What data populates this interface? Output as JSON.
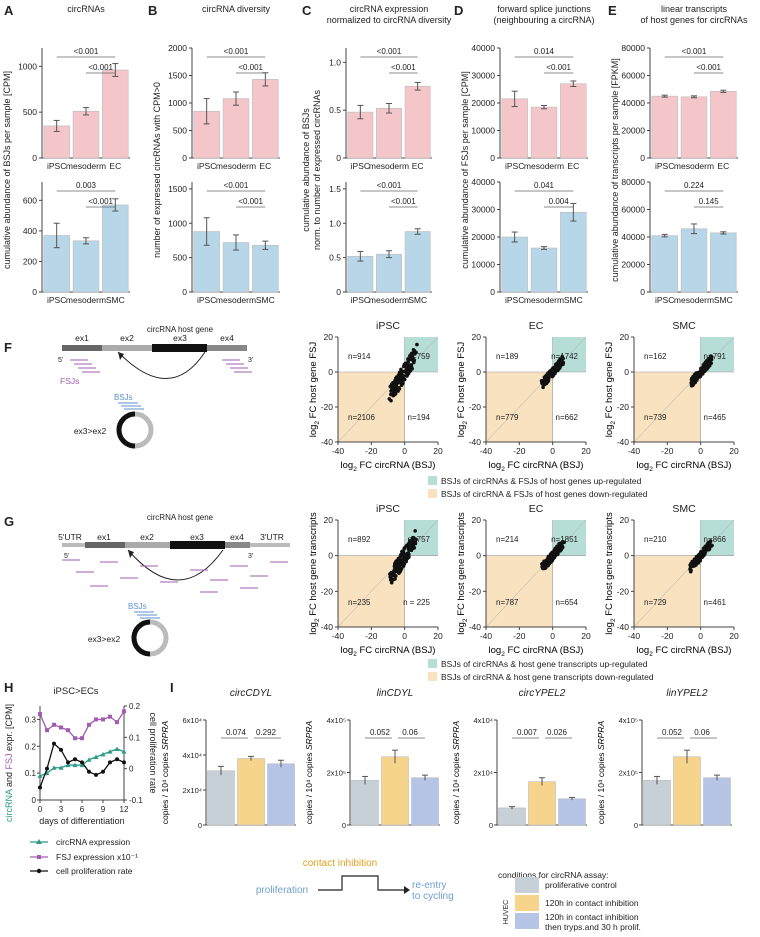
{
  "colors": {
    "pink": "#f4c5c9",
    "blue": "#b7d6e8",
    "teal": "#b6ddd6",
    "tan": "#f8e2c0",
    "purple": "#a35bb3",
    "green": "#2b9a87",
    "gray": "#c6d0d6",
    "gold": "#f6d48c",
    "lavender": "#b6c5e6",
    "bsjblue": "#5b8fd0",
    "inhibit": "#e0a020",
    "prolif": "#6f9fcf"
  },
  "panelA": {
    "letter": "A",
    "title": [
      "circRNAs"
    ],
    "ylabel": [
      "cumulative abundance of BSJs per sample [CPM]"
    ],
    "top": {
      "ticks": [
        "0",
        "500",
        "1000"
      ],
      "tv": [
        0,
        500,
        1000
      ],
      "ymax": 1200,
      "cats": [
        "iPSC",
        "mesoderm",
        "EC"
      ],
      "values": [
        350,
        510,
        960
      ],
      "errors": [
        60,
        40,
        70
      ],
      "p": [
        "<0.001",
        "<0.001"
      ]
    },
    "bottom": {
      "ticks": [
        "0",
        "200",
        "400",
        "600"
      ],
      "tv": [
        0,
        200,
        400,
        600
      ],
      "ymax": 720,
      "cats": [
        "iPSC",
        "mesoderm",
        "SMC"
      ],
      "values": [
        370,
        335,
        570
      ],
      "errors": [
        80,
        20,
        40
      ],
      "p": [
        "0.003",
        "<0.001"
      ]
    }
  },
  "panelB": {
    "letter": "B",
    "title": [
      "circRNA diversity"
    ],
    "ylabel": [
      "number of expressed circRNAs with CPM>0"
    ],
    "top": {
      "ticks": [
        "0",
        "500",
        "1000",
        "1500",
        "2000"
      ],
      "tv": [
        0,
        500,
        1000,
        1500,
        2000
      ],
      "ymax": 2000,
      "cats": [
        "iPSC",
        "mesoderm",
        "EC"
      ],
      "values": [
        850,
        1080,
        1430
      ],
      "errors": [
        230,
        120,
        120
      ],
      "p": [
        "<0.001",
        "<0.001"
      ]
    },
    "bottom": {
      "ticks": [
        "0",
        "500",
        "1000",
        "1500"
      ],
      "tv": [
        0,
        500,
        1000,
        1500
      ],
      "ymax": 1600,
      "cats": [
        "iPSC",
        "mesoderm",
        "SMC"
      ],
      "values": [
        880,
        720,
        680
      ],
      "errors": [
        200,
        110,
        60
      ],
      "p": [
        "<0.001",
        "<0.001"
      ]
    }
  },
  "panelC": {
    "letter": "C",
    "title": [
      "circRNA expression",
      "normalized to circRNA diversity"
    ],
    "ylabel": [
      "cumulative abundance of BSJs",
      "norm. to number of expressed circRNAs"
    ],
    "top": {
      "ticks": [
        "0",
        "0.5",
        "1.0"
      ],
      "tv": [
        0,
        0.5,
        1.0
      ],
      "ymax": 1.15,
      "cats": [
        "iPSC",
        "mesoderm",
        "EC"
      ],
      "values": [
        0.48,
        0.52,
        0.75
      ],
      "errors": [
        0.07,
        0.05,
        0.04
      ],
      "p": [
        "<0.001",
        "<0.001"
      ]
    },
    "bottom": {
      "ticks": [
        "0",
        "0.5",
        "1.0",
        "1.5"
      ],
      "tv": [
        0,
        0.5,
        1.0,
        1.5
      ],
      "ymax": 1.6,
      "cats": [
        "iPSC",
        "mesoderm",
        "SMC"
      ],
      "values": [
        0.52,
        0.55,
        0.88
      ],
      "errors": [
        0.07,
        0.05,
        0.04
      ],
      "p": [
        "<0.001",
        "<0.001"
      ]
    }
  },
  "panelD": {
    "letter": "D",
    "title": [
      "forward splice junctions",
      "(neighbouring a circRNA)"
    ],
    "ylabel": [
      "cumulative abundance of FSJs per sample [CPM]"
    ],
    "top": {
      "ticks": [
        "0",
        "10000",
        "20000",
        "30000",
        "40000"
      ],
      "tv": [
        0,
        10000,
        20000,
        30000,
        40000
      ],
      "ymax": 40000,
      "cats": [
        "iPSC",
        "mesoderm",
        "EC"
      ],
      "values": [
        21500,
        18500,
        27000
      ],
      "errors": [
        2800,
        600,
        1000
      ],
      "p": [
        "0.014",
        "<0.001"
      ]
    },
    "bottom": {
      "ticks": [
        "0",
        "10000",
        "20000",
        "30000",
        "40000"
      ],
      "tv": [
        0,
        10000,
        20000,
        30000,
        40000
      ],
      "ymax": 40000,
      "cats": [
        "iPSC",
        "mesoderm",
        "SMC"
      ],
      "values": [
        20000,
        16000,
        29000
      ],
      "errors": [
        1800,
        500,
        3200
      ],
      "p": [
        "0.041",
        "0.004"
      ]
    }
  },
  "panelE": {
    "letter": "E",
    "title": [
      "linear transcripts",
      "of host genes for circRNAs"
    ],
    "ylabel": [
      "cumulative abundance of transcripts per sample [FPKM]"
    ],
    "top": {
      "ticks": [
        "0",
        "20000",
        "40000",
        "60000",
        "80000"
      ],
      "tv": [
        0,
        20000,
        40000,
        60000,
        80000
      ],
      "ymax": 80000,
      "cats": [
        "iPSC",
        "mesoderm",
        "EC"
      ],
      "values": [
        45000,
        44500,
        48500
      ],
      "errors": [
        700,
        700,
        800
      ],
      "p": [
        "<0.001",
        "<0.001"
      ]
    },
    "bottom": {
      "ticks": [
        "0",
        "20000",
        "40000",
        "60000",
        "80000"
      ],
      "tv": [
        0,
        20000,
        40000,
        60000,
        80000
      ],
      "ymax": 80000,
      "cats": [
        "iPSC",
        "mesoderm",
        "SMC"
      ],
      "values": [
        41000,
        46000,
        43000
      ],
      "errors": [
        900,
        3500,
        800
      ],
      "p": [
        "0.224",
        "0.145"
      ]
    }
  },
  "panelF": {
    "letter": "F",
    "host_title": "circRNA host gene",
    "exons": [
      "ex1",
      "ex2",
      "ex3",
      "ex4"
    ],
    "five": "5'",
    "three": "3'",
    "fsj": "FSJs",
    "bsj": "BSJs",
    "junction": "ex3>ex2",
    "ylabel": "FC host gene FSJ",
    "xlabel": "FC circRNA (BSJ)",
    "log": "log",
    "sub": "2",
    "axis": {
      "x": [
        -40,
        20
      ],
      "y": [
        -40,
        20
      ],
      "ticks": [
        "-40",
        "-20",
        "0",
        "20"
      ],
      "tv": [
        -40,
        -20,
        0,
        20
      ]
    },
    "plots": [
      {
        "title": "iPSC",
        "counts": [
          "n=914",
          "n=759",
          "n=2106",
          "n=194"
        ]
      },
      {
        "title": "EC",
        "counts": [
          "n=189",
          "n=1742",
          "n=779",
          "n=662"
        ]
      },
      {
        "title": "SMC",
        "counts": [
          "n=162",
          "n=791",
          "n=739",
          "n=465"
        ]
      }
    ],
    "legend": [
      "BSJs of circRNAs & FSJs of host genes up-regulated",
      "BSJs of circRNA & FSJs of host genes down-regulated"
    ]
  },
  "panelG": {
    "letter": "G",
    "host_title": "circRNA host gene",
    "utr5": "5'UTR",
    "utr3": "3'UTR",
    "exons": [
      "ex1",
      "ex2",
      "ex3",
      "ex4"
    ],
    "five": "5'",
    "three": "3'",
    "bsj": "BSJs",
    "junction": "ex3>ex2",
    "ylabel": "FC host gene transcripts",
    "xlabel": "FC circRNA (BSJ)",
    "log": "log",
    "sub": "2",
    "plots": [
      {
        "title": "iPSC",
        "counts": [
          "n=892",
          "n=757",
          "n=235",
          "n = 225"
        ]
      },
      {
        "title": "EC",
        "counts": [
          "n=214",
          "n=1851",
          "n=787",
          "n=654"
        ]
      },
      {
        "title": "SMC",
        "counts": [
          "n=210",
          "n=866",
          "n=729",
          "n=461"
        ]
      }
    ],
    "legend": [
      "BSJs of circRNAs & host gene transcripts up-regulated",
      "BSJs of circRNA & host gene transcripts down-regulated"
    ]
  },
  "panelH": {
    "letter": "H",
    "title": "iPSC>ECs",
    "ylabel_parts": [
      "circRNA",
      " and ",
      "FSJ",
      " expr. [CPM]"
    ],
    "y2label": "cell proliferation rate",
    "xlabel": "days of differentiation",
    "xticks": [
      "0",
      "3",
      "6",
      "9",
      "12"
    ],
    "xt": [
      0,
      3,
      6,
      9,
      12
    ],
    "yticks": [
      "0",
      "0.1",
      "0.2",
      "0.3"
    ],
    "yt": [
      0,
      0.1,
      0.2,
      0.3
    ],
    "y2ticks": [
      "0.2",
      "0.1",
      "0",
      "-0.1"
    ],
    "y2t": [
      0.2,
      0.1,
      0,
      -0.1
    ],
    "x": [
      0,
      1,
      2,
      3,
      4,
      5,
      6,
      7,
      8,
      9,
      10,
      11,
      12
    ],
    "circ": [
      0.09,
      0.1,
      0.12,
      0.12,
      0.13,
      0.13,
      0.13,
      0.15,
      0.16,
      0.17,
      0.18,
      0.19,
      0.18
    ],
    "fsj": [
      0.32,
      0.26,
      0.28,
      0.27,
      0.26,
      0.23,
      0.23,
      0.28,
      0.3,
      0.3,
      0.31,
      0.29,
      0.33
    ],
    "prolif": [
      -0.06,
      0.0,
      0.08,
      0.06,
      0.02,
      0.03,
      0.02,
      -0.01,
      -0.02,
      -0.01,
      0.02,
      0.03,
      0.02
    ],
    "legend": [
      "circRNA expression",
      "FSJ expression x10⁻¹",
      "cell proliferation rate"
    ]
  },
  "panelI": {
    "letter": "I",
    "ylabel": "copies / 10⁴ copies",
    "gene": "SRPRA",
    "plots": [
      {
        "title": "circCDYL",
        "ticks": [
          "0",
          "2x10⁴",
          "4x10⁴",
          "6x10⁴"
        ],
        "tv": [
          0,
          2,
          4,
          6
        ],
        "ymax": 6,
        "values": [
          3.1,
          3.8,
          3.5
        ],
        "errors": [
          0.25,
          0.12,
          0.2
        ],
        "p": [
          "0.074",
          "0.292"
        ]
      },
      {
        "title": "linCDYL",
        "ticks": [
          "0",
          "2x10⁵",
          "4x10⁵"
        ],
        "tv": [
          0,
          2,
          4
        ],
        "ymax": 4,
        "values": [
          1.7,
          2.6,
          1.8
        ],
        "errors": [
          0.15,
          0.25,
          0.1
        ],
        "p": [
          "0.052",
          "0.06"
        ]
      },
      {
        "title": "circYPEL2",
        "ticks": [
          "0",
          "2x10⁴",
          "4x10⁴"
        ],
        "tv": [
          0,
          2,
          4
        ],
        "ymax": 4,
        "values": [
          0.65,
          1.65,
          1.0
        ],
        "errors": [
          0.05,
          0.15,
          0.05
        ],
        "p": [
          "0.007",
          "0.026"
        ]
      },
      {
        "title": "linYPEL2",
        "ticks": [
          "0",
          "2x10⁵",
          "4x10⁵"
        ],
        "tv": [
          0,
          2,
          4
        ],
        "ymax": 4,
        "values": [
          1.7,
          2.6,
          1.8
        ],
        "errors": [
          0.15,
          0.25,
          0.1
        ],
        "p": [
          "0.052",
          "0.06"
        ]
      }
    ],
    "schema": {
      "inhibit": "contact inhibition",
      "prolif": "proliferation",
      "reentry": [
        "re-entry",
        "to cycling"
      ]
    },
    "cond_title": "conditions for circRNA assay:",
    "huvec": "HUVEC",
    "conditions": [
      [
        "proliferative control"
      ],
      [
        "120h in contact inhibition"
      ],
      [
        "120h in contact inhibition",
        "then tryps.and 30 h prolif."
      ]
    ]
  }
}
